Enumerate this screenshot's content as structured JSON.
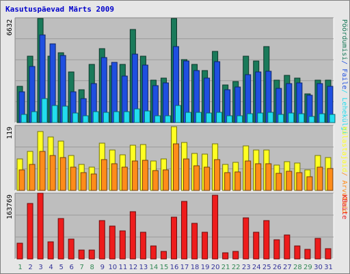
{
  "title": "Kasutuspäevad Märts 2009",
  "colors": {
    "background": "#e6e6e6",
    "plot": "#bebebe",
    "title": "#0000cc",
    "weekday_label": "#333399",
    "weekend_label": "#338855",
    "pages": "#1a7a5a",
    "files": "#1f4fe0",
    "visits": "#22ddee",
    "hits": "#ffff22",
    "visitors": "#ff8c1a",
    "kbytes": "#ee1c1c"
  },
  "chart_data": [
    {
      "type": "bar",
      "panel": "top",
      "y_max_label": "6632",
      "ylim": [
        0,
        6632
      ],
      "grid": true,
      "legend_position": "right",
      "legend": [
        {
          "text": "Pöördumisi",
          "color_key": "pages"
        },
        {
          "text": "Faile",
          "color_key": "files"
        },
        {
          "text": "Lehekülgi",
          "color_key": "visits"
        }
      ],
      "categories": [
        "1",
        "2",
        "3",
        "4",
        "5",
        "6",
        "7",
        "8",
        "9",
        "10",
        "11",
        "12",
        "13",
        "14",
        "15",
        "16",
        "17",
        "18",
        "19",
        "20",
        "21",
        "22",
        "23",
        "24",
        "25",
        "26",
        "27",
        "28",
        "29",
        "30",
        "31"
      ],
      "series": [
        {
          "name": "Pöördumisi",
          "color_key": "pages",
          "values": [
            2300,
            4200,
            6600,
            4200,
            4400,
            3200,
            2100,
            3700,
            4700,
            3600,
            3700,
            5900,
            4200,
            2700,
            2800,
            6600,
            4000,
            3700,
            3300,
            4500,
            2400,
            2600,
            4200,
            3900,
            4800,
            2700,
            3000,
            2800,
            1800,
            2700,
            2700
          ]
        },
        {
          "name": "Faile",
          "color_key": "files",
          "values": [
            1950,
            3550,
            5550,
            5000,
            4250,
            1950,
            1500,
            2450,
            4100,
            3800,
            2950,
            4350,
            3650,
            2350,
            2500,
            4800,
            3900,
            3300,
            2800,
            3850,
            2100,
            2250,
            3050,
            3200,
            3250,
            2150,
            2450,
            2500,
            1750,
            2450,
            2300
          ]
        },
        {
          "name": "Lehekülgi",
          "color_key": "visits",
          "values": [
            500,
            700,
            1500,
            1100,
            1050,
            600,
            450,
            700,
            650,
            700,
            700,
            850,
            750,
            450,
            450,
            1100,
            650,
            650,
            600,
            650,
            450,
            450,
            550,
            600,
            650,
            500,
            600,
            550,
            400,
            550,
            500
          ]
        }
      ]
    },
    {
      "type": "bar",
      "panel": "middle",
      "y_max_label": "119",
      "ylim": [
        0,
        119
      ],
      "grid": true,
      "legend_position": "right",
      "legend": [
        {
          "text": "Külastajaid",
          "color_key": "hits"
        },
        {
          "text": "Arvuteid",
          "color_key": "visitors"
        }
      ],
      "categories": [
        "1",
        "2",
        "3",
        "4",
        "5",
        "6",
        "7",
        "8",
        "9",
        "10",
        "11",
        "12",
        "13",
        "14",
        "15",
        "16",
        "17",
        "18",
        "19",
        "20",
        "21",
        "22",
        "23",
        "24",
        "25",
        "26",
        "27",
        "28",
        "29",
        "30",
        "31"
      ],
      "series": [
        {
          "name": "Külastajaid",
          "color_key": "hits",
          "values": [
            58,
            72,
            108,
            98,
            90,
            64,
            48,
            43,
            86,
            74,
            65,
            83,
            84,
            54,
            58,
            117,
            88,
            68,
            66,
            85,
            48,
            51,
            82,
            74,
            74,
            46,
            53,
            50,
            38,
            64,
            60
          ]
        },
        {
          "name": "Arvuteid",
          "color_key": "visitors",
          "values": [
            38,
            48,
            71,
            64,
            60,
            43,
            32,
            30,
            56,
            49,
            42,
            54,
            55,
            36,
            38,
            85,
            57,
            45,
            43,
            56,
            32,
            34,
            54,
            49,
            49,
            31,
            35,
            33,
            25,
            42,
            40
          ]
        }
      ]
    },
    {
      "type": "bar",
      "panel": "bottom",
      "y_max_label": "163769",
      "ylim": [
        0,
        163769
      ],
      "grid": true,
      "legend_position": "right",
      "legend": [
        {
          "text": "KBaite",
          "color_key": "kbytes"
        }
      ],
      "categories": [
        "1",
        "2",
        "3",
        "4",
        "5",
        "6",
        "7",
        "8",
        "9",
        "10",
        "11",
        "12",
        "13",
        "14",
        "15",
        "16",
        "17",
        "18",
        "19",
        "20",
        "21",
        "22",
        "23",
        "24",
        "25",
        "26",
        "27",
        "28",
        "29",
        "30",
        "31"
      ],
      "series": [
        {
          "name": "KBaite",
          "color_key": "kbytes",
          "values": [
            40000,
            139000,
            163769,
            42000,
            101000,
            50000,
            22000,
            23000,
            96000,
            82000,
            70000,
            117000,
            66000,
            33000,
            18000,
            104000,
            143000,
            89000,
            66000,
            159000,
            16000,
            19000,
            102000,
            67000,
            95000,
            47000,
            60000,
            33000,
            24000,
            52000,
            25000
          ]
        }
      ]
    }
  ],
  "x_labels": [
    "1",
    "2",
    "3",
    "4",
    "5",
    "6",
    "7",
    "8",
    "9",
    "10",
    "11",
    "12",
    "13",
    "14",
    "15",
    "16",
    "17",
    "18",
    "19",
    "20",
    "21",
    "22",
    "23",
    "24",
    "25",
    "26",
    "27",
    "28",
    "29",
    "30",
    "31"
  ],
  "weekend_days": [
    "1",
    "7",
    "8",
    "14",
    "15",
    "21",
    "22",
    "28",
    "29"
  ]
}
